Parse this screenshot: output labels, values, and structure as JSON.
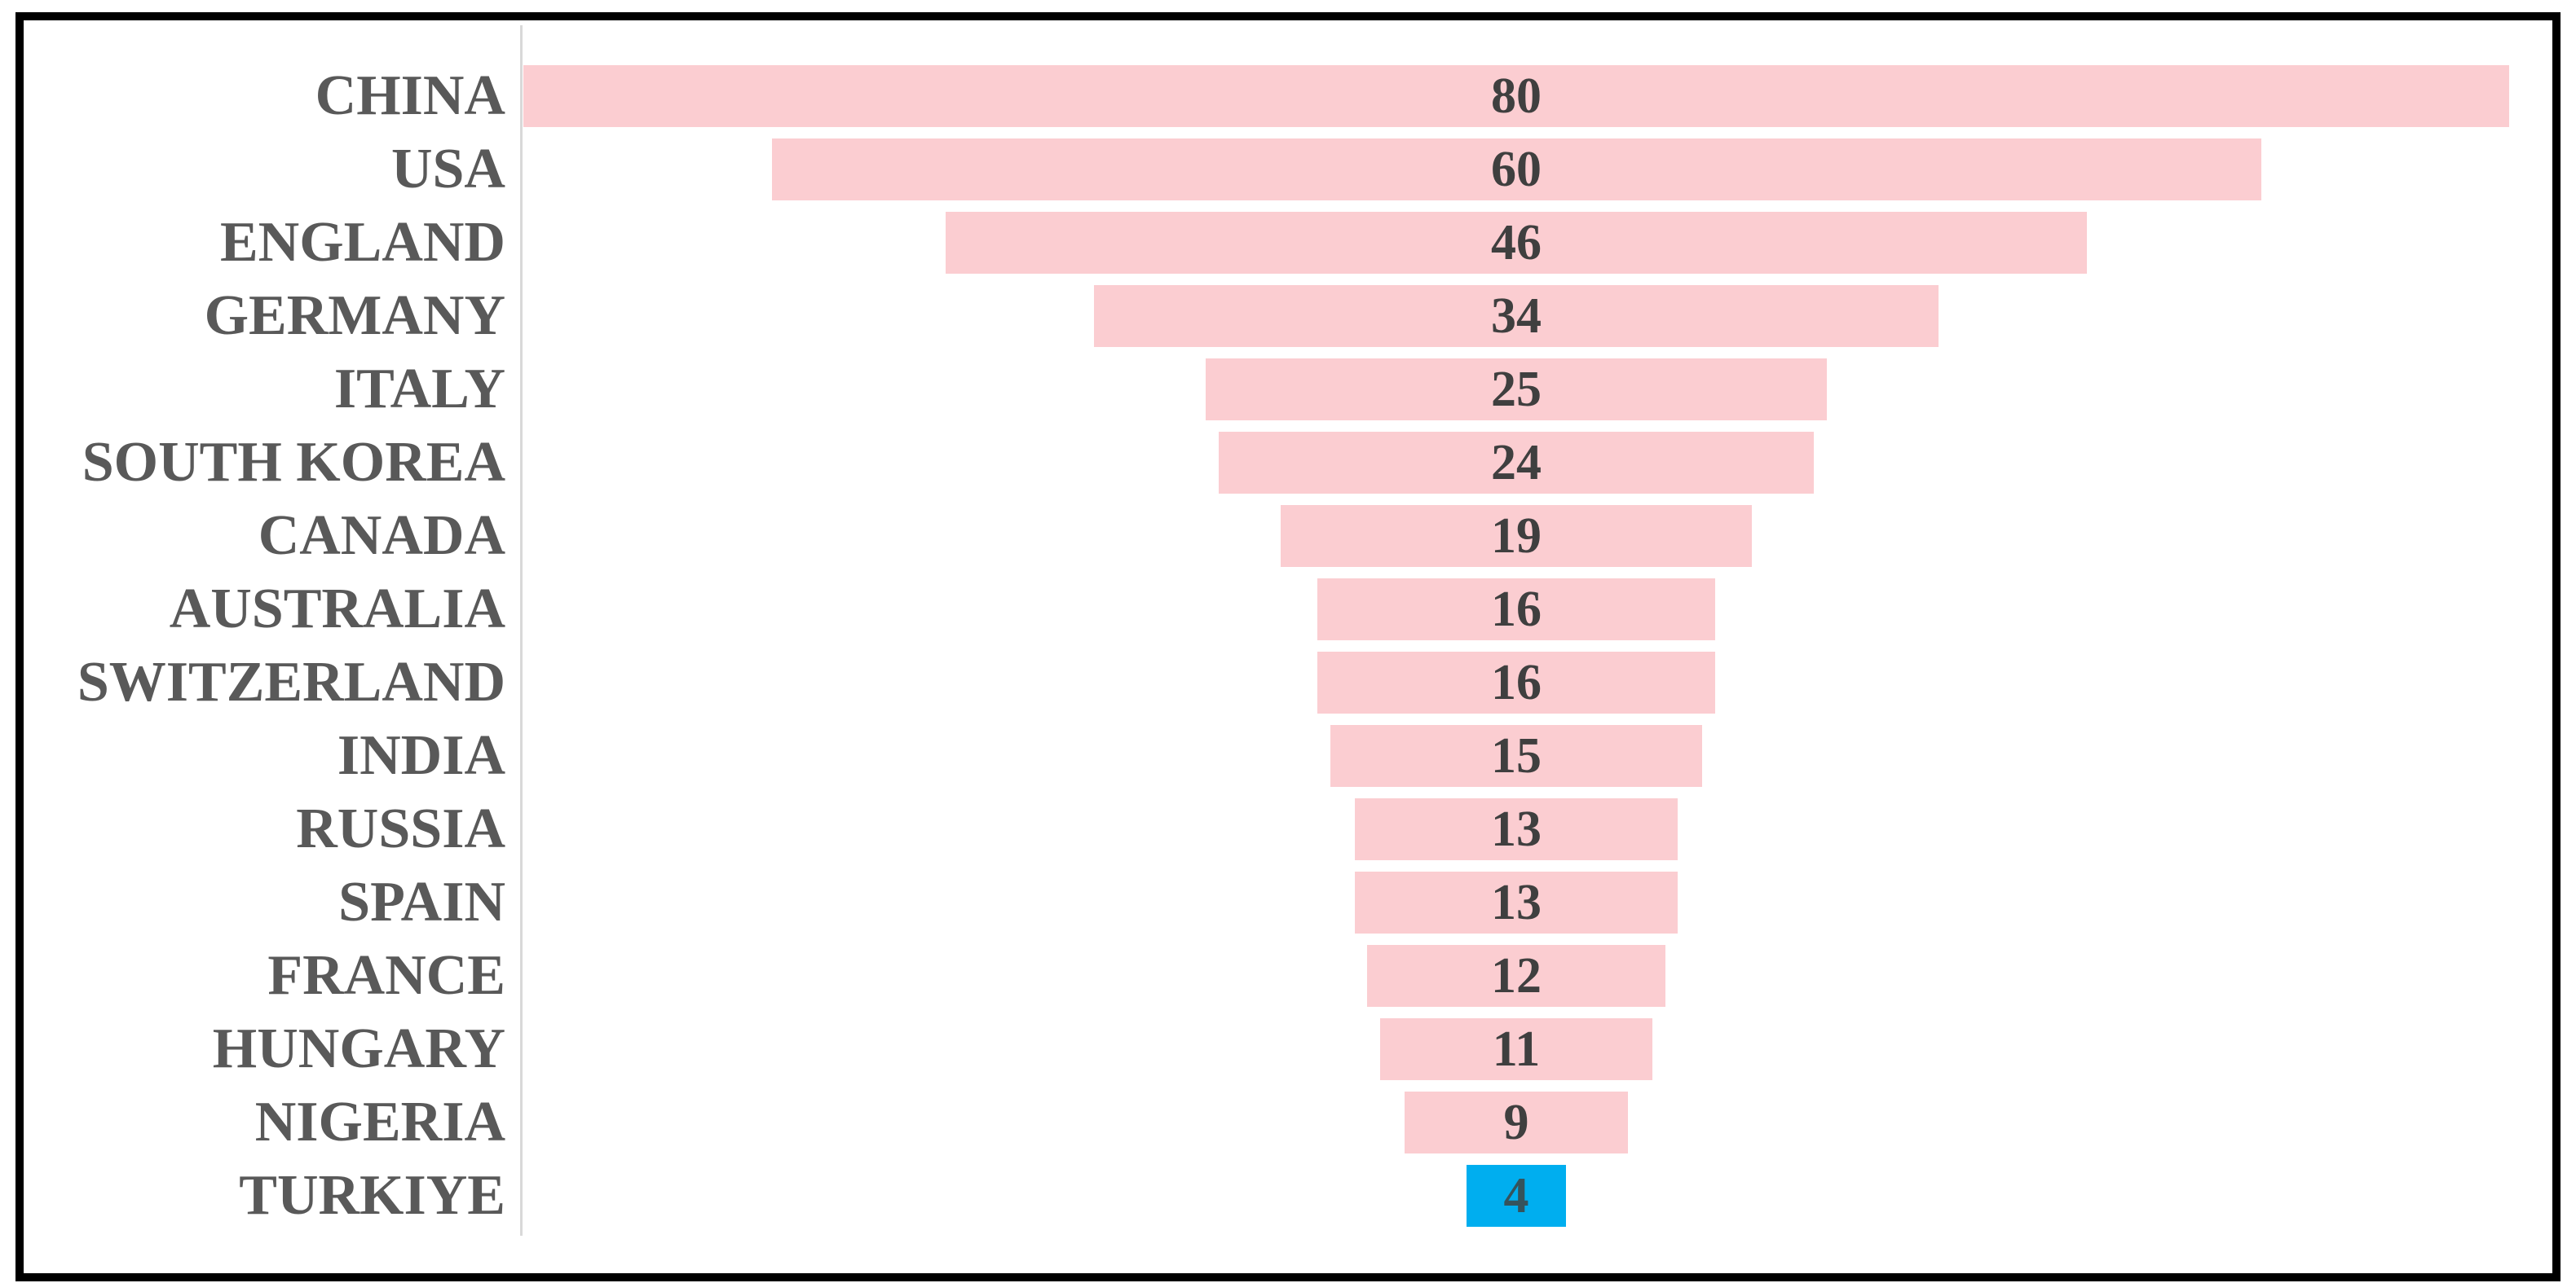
{
  "chart_data": {
    "type": "bar",
    "variant": "centered-funnel",
    "title": "",
    "xlabel": "",
    "ylabel": "",
    "grid": false,
    "legend": false,
    "data_labels_position": "center",
    "xlim": [
      0,
      80
    ],
    "categories": [
      "CHINA",
      "USA",
      "ENGLAND",
      "GERMANY",
      "ITALY",
      "SOUTH KOREA",
      "CANADA",
      "AUSTRALIA",
      "SWITZERLAND",
      "INDIA",
      "RUSSIA",
      "SPAIN",
      "FRANCE",
      "HUNGARY",
      "NIGERIA",
      "TURKIYE"
    ],
    "values": [
      80,
      60,
      46,
      34,
      25,
      24,
      19,
      16,
      16,
      15,
      13,
      13,
      12,
      11,
      9,
      4
    ],
    "highlight_category": "TURKIYE",
    "highlight_index": 15,
    "colors": {
      "bar": "#FBCDD1",
      "highlight_bar": "#00AEEF",
      "category_label": "#595959",
      "value_label": "#3F3F3F",
      "highlight_value_label": "#35535C",
      "axis_line": "#D9D9D9",
      "frame_border": "#000000",
      "background": "#FFFFFF"
    }
  }
}
